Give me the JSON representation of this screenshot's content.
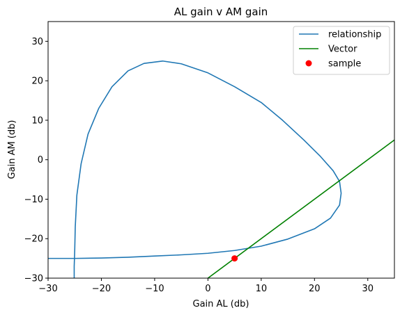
{
  "chart_data": {
    "type": "line",
    "title": "AL gain v AM gain",
    "xlabel": "Gain AL (db)",
    "ylabel": "Gain AM (db)",
    "xlim": [
      -30,
      35
    ],
    "ylim": [
      -30,
      35
    ],
    "xticks": [
      -30,
      -20,
      -10,
      0,
      10,
      20,
      30
    ],
    "yticks": [
      -30,
      -20,
      -10,
      0,
      10,
      20,
      30
    ],
    "grid": false,
    "legend_position": "top-right",
    "series": [
      {
        "name": "relationship",
        "kind": "line",
        "color": "#1f77b4",
        "points": [
          [
            -30,
            -25.0
          ],
          [
            -27,
            -25.0
          ],
          [
            -25,
            -25.0
          ],
          [
            -20,
            -24.9
          ],
          [
            -15,
            -24.7
          ],
          [
            -10,
            -24.4
          ],
          [
            -5,
            -24.1
          ],
          [
            0,
            -23.7
          ],
          [
            5,
            -23.0
          ],
          [
            10,
            -21.9
          ],
          [
            15,
            -20.1
          ],
          [
            20,
            -17.5
          ],
          [
            23,
            -14.8
          ],
          [
            24.7,
            -11.5
          ],
          [
            25.0,
            -8.5
          ],
          [
            24.7,
            -5.5
          ],
          [
            23.5,
            -2.8
          ],
          [
            21,
            1.0
          ],
          [
            18,
            5.0
          ],
          [
            14,
            10.0
          ],
          [
            10,
            14.5
          ],
          [
            5,
            18.5
          ],
          [
            0,
            22.0
          ],
          [
            -5,
            24.3
          ],
          [
            -8.5,
            25.0
          ],
          [
            -12,
            24.4
          ],
          [
            -15,
            22.5
          ],
          [
            -18,
            18.5
          ],
          [
            -20.5,
            13.0
          ],
          [
            -22.5,
            6.5
          ],
          [
            -23.8,
            -1.0
          ],
          [
            -24.6,
            -9.0
          ],
          [
            -24.9,
            -17.0
          ],
          [
            -25.0,
            -23.0
          ],
          [
            -25.1,
            -27.0
          ],
          [
            -25.1,
            -30.0
          ]
        ]
      },
      {
        "name": "Vector",
        "kind": "line",
        "color": "#008000",
        "points": [
          [
            0,
            -30
          ],
          [
            35,
            5
          ]
        ]
      },
      {
        "name": "sample",
        "kind": "scatter",
        "color": "#ff0000",
        "points": [
          [
            5,
            -25
          ]
        ]
      }
    ]
  }
}
